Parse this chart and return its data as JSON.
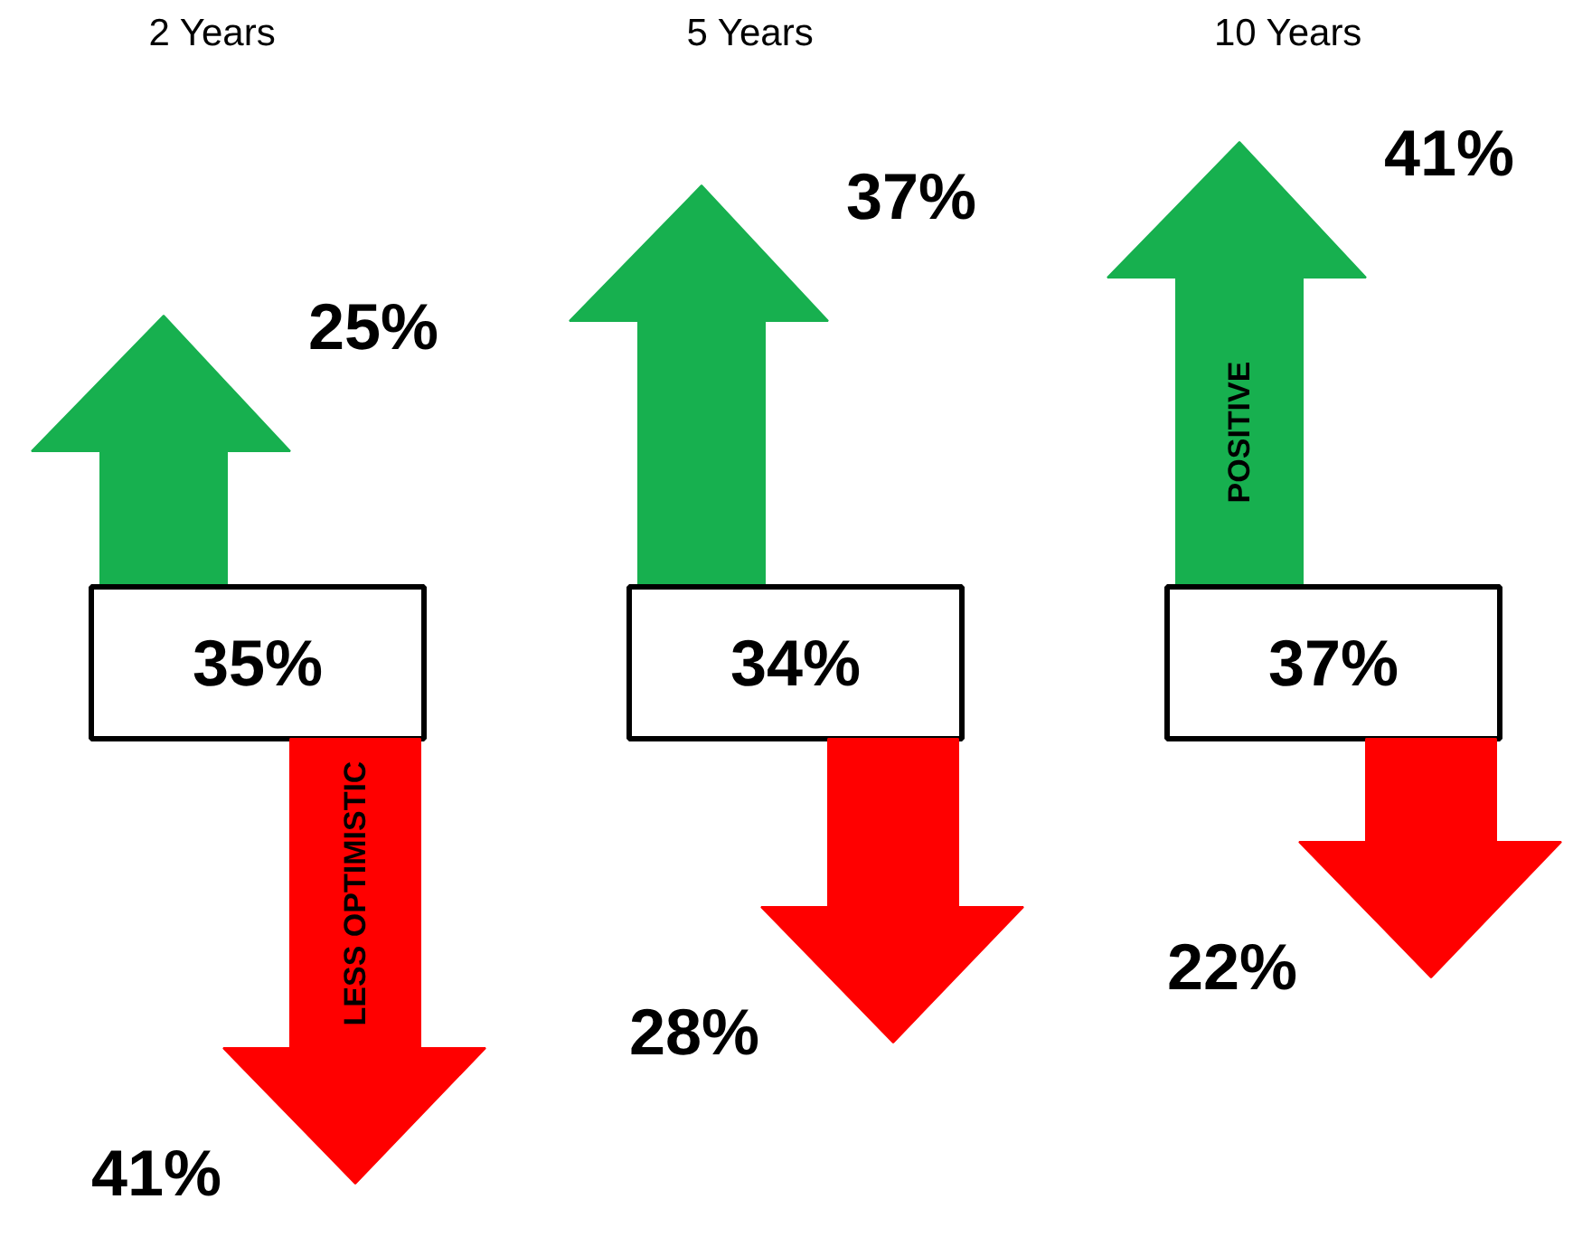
{
  "chart_data": {
    "type": "other",
    "categories": [
      "2 Years",
      "5 Years",
      "10 Years"
    ],
    "series": [
      {
        "color": "#17b04f",
        "values": [
          25,
          37,
          41
        ],
        "value_labels": [
          "25%",
          "37%",
          "41%"
        ]
      },
      {
        "color": "#ffffff",
        "values": [
          35,
          34,
          37
        ],
        "value_labels": [
          "35%",
          "34%",
          "37%"
        ]
      },
      {
        "color": "#ff0000",
        "values": [
          41,
          28,
          22
        ],
        "value_labels": [
          "41%",
          "28%",
          "22%"
        ]
      }
    ],
    "annotations": [
      {
        "text": "POSITIVE",
        "x": "10 Years"
      },
      {
        "text": "LESS OPTIMISTIC",
        "x": "2 Years"
      }
    ]
  }
}
